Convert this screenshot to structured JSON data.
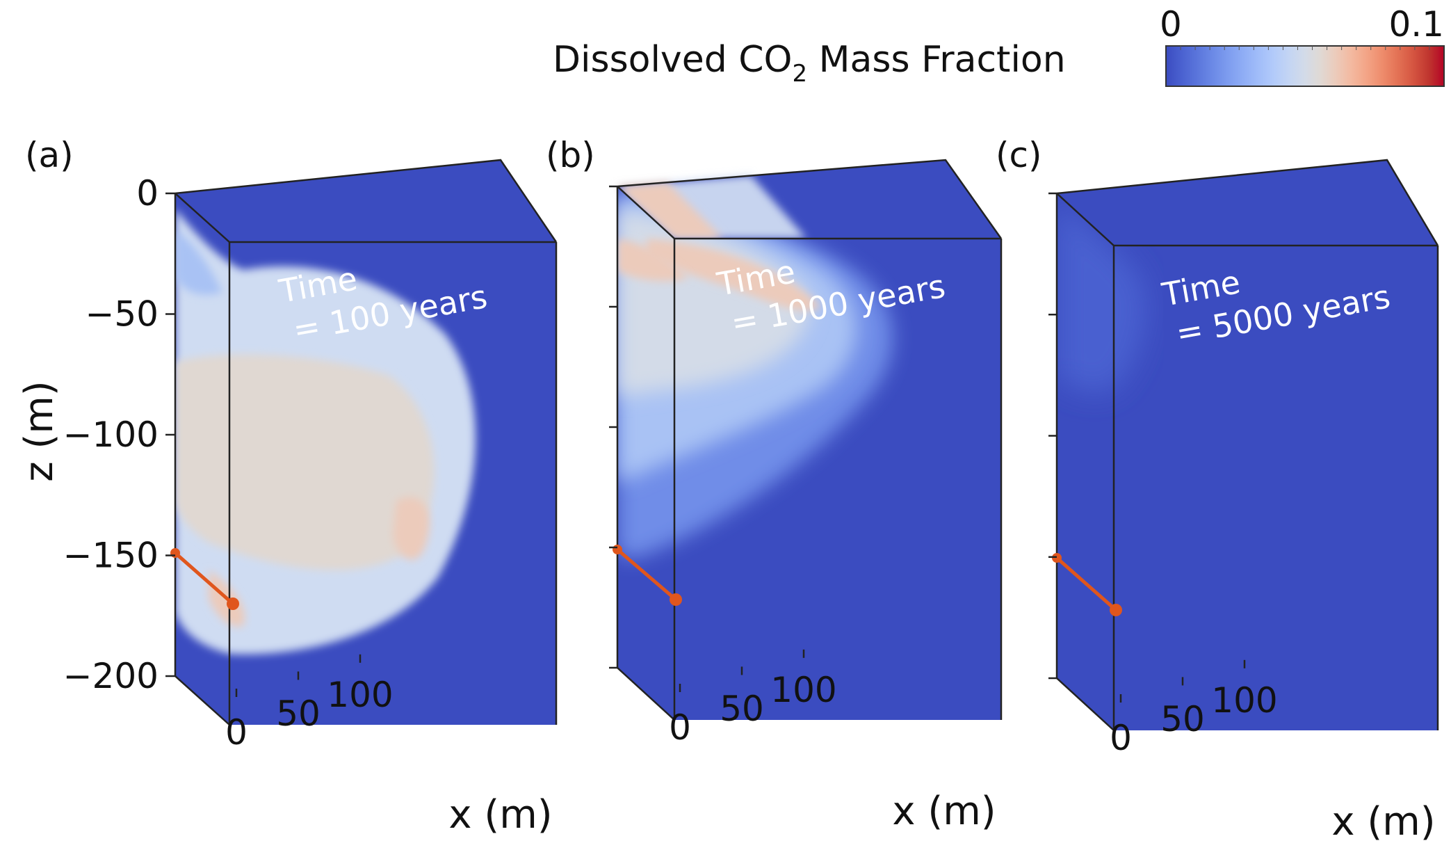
{
  "colorbar": {
    "title_prefix": "Dissolved CO",
    "title_subscript": "2",
    "title_suffix": " Mass Fraction",
    "min_label": "0",
    "max_label": "0.1",
    "min": 0,
    "max": 0.1,
    "colors": [
      "#3b4cc0",
      "#4a61d0",
      "#5a75db",
      "#6b89e6",
      "#7d9cef",
      "#8fadf5",
      "#a1bdf9",
      "#b3cbfa",
      "#c4d5f3",
      "#d3dbe8",
      "#e0d9d4",
      "#eccbbb",
      "#f3b9a0",
      "#f3a486",
      "#ee8c6c",
      "#e37255",
      "#d55541",
      "#c0362f",
      "#b40426"
    ]
  },
  "y_axis": {
    "label": "z (m)",
    "ticks": [
      "0",
      "−50",
      "−100",
      "−150",
      "−200"
    ],
    "values": [
      0,
      -50,
      -100,
      -150,
      -200
    ]
  },
  "x_axis": {
    "label": "x (m)",
    "ticks": [
      "0",
      "50",
      "100"
    ],
    "values": [
      0,
      50,
      100
    ]
  },
  "panels": [
    {
      "id": "(a)",
      "time_line1": "Time",
      "time_line2": "= 100 years",
      "years": 100,
      "plume_extent_x_m": 100,
      "plume_depth_m": 190
    },
    {
      "id": "(b)",
      "time_line1": "Time",
      "time_line2": "= 1000 years",
      "years": 1000,
      "plume_extent_x_m": 85,
      "plume_depth_m": 155
    },
    {
      "id": "(c)",
      "time_line1": "Time",
      "time_line2": "= 5000 years",
      "years": 5000,
      "plume_extent_x_m": 0,
      "plume_depth_m": 0
    }
  ],
  "colors": {
    "background_fluid": "#3b4cc0",
    "well": "#e0561d",
    "edge": "#222222"
  }
}
